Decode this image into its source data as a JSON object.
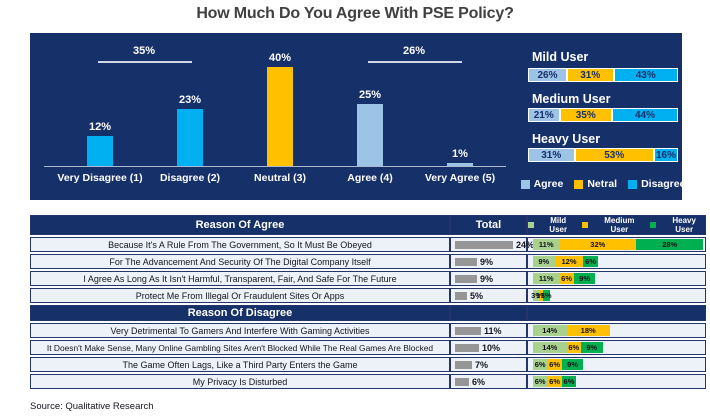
{
  "title": "How Much Do You Agree With PSE Policy?",
  "source": "Source: Qualitative Research",
  "colors": {
    "panel_navy": "#16306A",
    "disagree_blue": "#00B0F0",
    "neutral_yellow": "#FFC000",
    "agree_light_blue": "#9DC3E6",
    "mild_green": "#A9D18E",
    "medium_yellow": "#FFC000",
    "heavy_green": "#00B050",
    "total_gray": "#969696"
  },
  "chart_data": [
    {
      "type": "bar",
      "title": "How Much Do You Agree With PSE Policy?",
      "categories": [
        "Very Disagree (1)",
        "Disagree (2)",
        "Neutral (3)",
        "Agree (4)",
        "Very Agree (5)"
      ],
      "values": [
        12,
        23,
        40,
        25,
        1
      ],
      "value_labels": [
        "12%",
        "23%",
        "40%",
        "25%",
        "1%"
      ],
      "bar_colors": [
        "#00B0F0",
        "#00B0F0",
        "#FFC000",
        "#9DC3E6",
        "#9DC3E6"
      ],
      "annotations": [
        {
          "label": "35%",
          "from": 0,
          "to": 1,
          "meaning": "total disagree"
        },
        {
          "label": "26%",
          "from": 3,
          "to": 4,
          "meaning": "total agree"
        }
      ],
      "xlabel": "",
      "ylabel": "",
      "ylim": [
        0,
        45
      ],
      "grid": false,
      "unit": "%"
    },
    {
      "type": "bar",
      "subtype": "horizontal-stacked-100",
      "categories": [
        "Mild User",
        "Medium User",
        "Heavy User"
      ],
      "series": [
        {
          "name": "Agree",
          "color": "#9DC3E6",
          "values": [
            26,
            21,
            31
          ]
        },
        {
          "name": "Netral",
          "color": "#FFC000",
          "values": [
            31,
            35,
            53
          ]
        },
        {
          "name": "Disagree",
          "color": "#00B0F0",
          "values": [
            43,
            44,
            16
          ]
        }
      ],
      "legend_position": "bottom",
      "unit": "%"
    },
    {
      "type": "table",
      "total_column_header": "Total",
      "legend": [
        {
          "name": "Mild User",
          "color": "#A9D18E"
        },
        {
          "name": "Medium User",
          "color": "#FFC000"
        },
        {
          "name": "Heavy User",
          "color": "#00B050"
        }
      ],
      "sections": [
        {
          "header": "Reason Of Agree",
          "rows": [
            {
              "reason": "Because It's A Rule From The Government, So It Must Be Obeyed",
              "total": 24,
              "by_user": [
                11,
                32,
                28
              ]
            },
            {
              "reason": "For The Advancement And Security Of The Digital Company Itself",
              "total": 9,
              "by_user": [
                9,
                12,
                6
              ]
            },
            {
              "reason": "I Agree As Long As It Isn't Harmful, Transparent, Fair, And Safe For The Future",
              "total": 9,
              "by_user": [
                11,
                6,
                9
              ]
            },
            {
              "reason": "Protect Me From Illegal Or Fraudulent Sites Or Apps",
              "total": 5,
              "by_user": [
                3,
                1,
                3
              ]
            }
          ]
        },
        {
          "header": "Reason Of Disagree",
          "rows": [
            {
              "reason": "Very Detrimental To Gamers And Interfere With Gaming Activities",
              "total": 11,
              "by_user": [
                14,
                18,
                0
              ]
            },
            {
              "reason": "It Doesn't Make Sense, Many Online Gambling Sites Aren't Blocked While The Real Games Are Blocked",
              "total": 10,
              "by_user": [
                14,
                6,
                9
              ]
            },
            {
              "reason": "The Game Often Lags, Like a Third Party Enters the Game",
              "total": 7,
              "by_user": [
                6,
                6,
                9
              ]
            },
            {
              "reason": "My Privacy Is Disturbed",
              "total": 6,
              "by_user": [
                6,
                6,
                6
              ]
            }
          ]
        }
      ]
    }
  ]
}
